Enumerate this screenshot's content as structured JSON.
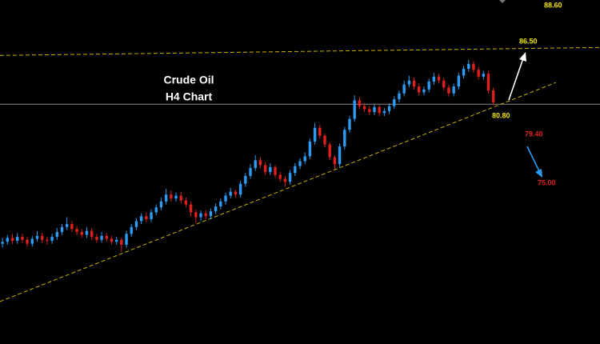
{
  "chart_data": {
    "type": "candlestick",
    "title": "Crude Oil",
    "subtitle": "H4 Chart",
    "up_color": "#2b9bf4",
    "down_color": "#e0201e",
    "xlim": [
      -0.5,
      120.5
    ],
    "ylim": [
      56.4,
      91.4
    ],
    "open": [
      66.6,
      66.8,
      67.2,
      66.9,
      67.3,
      67.0,
      66.6,
      67.1,
      67.4,
      67.0,
      66.9,
      67.3,
      67.8,
      68.3,
      68.6,
      68.1,
      67.8,
      67.5,
      67.9,
      67.3,
      67.0,
      67.4,
      67.1,
      66.8,
      67.0,
      66.5,
      67.6,
      68.3,
      68.9,
      69.4,
      69.1,
      69.8,
      70.3,
      70.9,
      71.6,
      71.2,
      71.5,
      71.0,
      70.6,
      69.8,
      69.3,
      69.7,
      69.4,
      69.9,
      70.4,
      70.9,
      71.5,
      71.9,
      71.6,
      72.7,
      73.5,
      74.3,
      75.1,
      74.6,
      73.9,
      74.4,
      73.6,
      73.2,
      72.9,
      73.8,
      74.5,
      75.0,
      75.5,
      77.0,
      78.4,
      77.6,
      76.7,
      75.4,
      74.7,
      76.5,
      78.2,
      79.3,
      81.2,
      80.6,
      80.3,
      80.0,
      80.5,
      79.9,
      80.1,
      80.6,
      81.3,
      81.9,
      82.8,
      83.2,
      82.6,
      82.0,
      82.3,
      83.1,
      83.6,
      83.2,
      82.5,
      81.9,
      82.6,
      83.7,
      84.4,
      84.9,
      84.3,
      83.6,
      83.9,
      82.2
    ],
    "high": [
      67.2,
      67.5,
      67.6,
      67.7,
      67.6,
      67.3,
      67.4,
      67.9,
      67.7,
      67.3,
      67.6,
      68.2,
      68.6,
      69.3,
      68.9,
      68.4,
      68.1,
      68.3,
      68.2,
      67.6,
      67.8,
      67.7,
      67.4,
      67.3,
      67.2,
      67.9,
      68.6,
      69.2,
      69.7,
      69.8,
      70.1,
      70.6,
      71.3,
      72.2,
      72.0,
      71.8,
      71.9,
      71.3,
      70.9,
      70.1,
      70.0,
      70.0,
      70.2,
      70.7,
      71.2,
      71.8,
      72.3,
      72.1,
      73.0,
      73.8,
      74.7,
      75.6,
      75.4,
      74.9,
      74.8,
      74.6,
      73.9,
      73.5,
      74.1,
      74.8,
      75.3,
      75.9,
      77.3,
      78.9,
      78.7,
      77.8,
      76.9,
      75.6,
      76.8,
      78.5,
      79.6,
      81.7,
      81.5,
      80.9,
      80.6,
      80.8,
      80.7,
      80.4,
      80.9,
      81.6,
      82.2,
      83.2,
      83.7,
      83.5,
      82.9,
      82.6,
      83.4,
      84.0,
      83.9,
      83.5,
      82.8,
      82.9,
      84.0,
      84.7,
      85.3,
      85.2,
      84.6,
      84.2,
      84.2,
      82.5
    ],
    "low": [
      66.2,
      66.5,
      66.6,
      66.6,
      66.7,
      66.3,
      66.3,
      66.8,
      66.7,
      66.5,
      66.6,
      67.0,
      67.5,
      68.0,
      67.8,
      67.5,
      67.2,
      67.2,
      67.0,
      66.7,
      66.7,
      66.8,
      66.5,
      66.5,
      65.8,
      66.2,
      67.3,
      68.0,
      68.6,
      68.8,
      68.8,
      69.5,
      70.0,
      70.6,
      70.9,
      70.9,
      70.7,
      70.3,
      69.4,
      68.7,
      68.9,
      69.1,
      69.1,
      69.6,
      70.1,
      70.6,
      71.2,
      71.3,
      71.3,
      72.4,
      73.2,
      74.0,
      74.3,
      73.6,
      73.6,
      73.3,
      72.9,
      72.4,
      72.6,
      73.5,
      74.2,
      74.7,
      75.2,
      76.7,
      77.3,
      76.4,
      75.1,
      74.2,
      74.4,
      76.2,
      77.9,
      79.0,
      80.3,
      80.0,
      79.7,
      79.7,
      79.6,
      79.6,
      79.8,
      80.3,
      81.0,
      81.6,
      82.5,
      82.3,
      81.7,
      81.7,
      82.0,
      82.8,
      82.9,
      82.2,
      81.6,
      81.6,
      82.3,
      83.4,
      84.1,
      84.0,
      83.3,
      83.3,
      81.9,
      80.7
    ],
    "close": [
      66.8,
      67.2,
      66.9,
      67.3,
      67.0,
      66.6,
      67.1,
      67.4,
      67.0,
      66.9,
      67.3,
      67.8,
      68.3,
      68.6,
      68.1,
      67.8,
      67.5,
      67.9,
      67.3,
      67.0,
      67.4,
      67.1,
      66.8,
      67.0,
      66.5,
      67.6,
      68.3,
      68.9,
      69.4,
      69.1,
      69.8,
      70.3,
      70.9,
      71.6,
      71.2,
      71.5,
      71.0,
      70.6,
      69.8,
      69.3,
      69.7,
      69.4,
      69.9,
      70.4,
      70.9,
      71.5,
      71.9,
      71.6,
      72.7,
      73.5,
      74.3,
      75.1,
      74.6,
      73.9,
      74.4,
      73.6,
      73.2,
      72.9,
      73.8,
      74.5,
      75.0,
      75.5,
      77.0,
      78.4,
      77.6,
      76.7,
      75.4,
      74.7,
      76.5,
      78.2,
      79.3,
      81.2,
      80.6,
      80.3,
      80.0,
      80.5,
      79.9,
      80.1,
      80.6,
      81.3,
      81.9,
      82.8,
      83.2,
      82.6,
      82.0,
      82.3,
      83.1,
      83.6,
      83.2,
      82.5,
      81.9,
      82.6,
      83.7,
      84.4,
      84.9,
      84.3,
      83.6,
      83.9,
      82.2,
      81.0
    ],
    "levels": [
      {
        "value": 80.8,
        "color": "#8a8a8a"
      }
    ],
    "trendlines": [
      {
        "from": [
          -0.5,
          60.72
        ],
        "to": [
          111.6,
          83.0
        ],
        "color": "#c8b400"
      },
      {
        "from": [
          -0.5,
          85.76
        ],
        "to": [
          120.5,
          86.57
        ],
        "color": "#c8b400"
      }
    ],
    "annotations": [
      {
        "text": "88.60",
        "color": "#f2e600"
      },
      {
        "text": "86.50",
        "color": "#f2e600"
      },
      {
        "text": "80.80",
        "color": "#f2e600"
      },
      {
        "text": "79.40",
        "color": "#e0201e"
      },
      {
        "text": "75.00",
        "color": "#e0201e"
      }
    ]
  }
}
